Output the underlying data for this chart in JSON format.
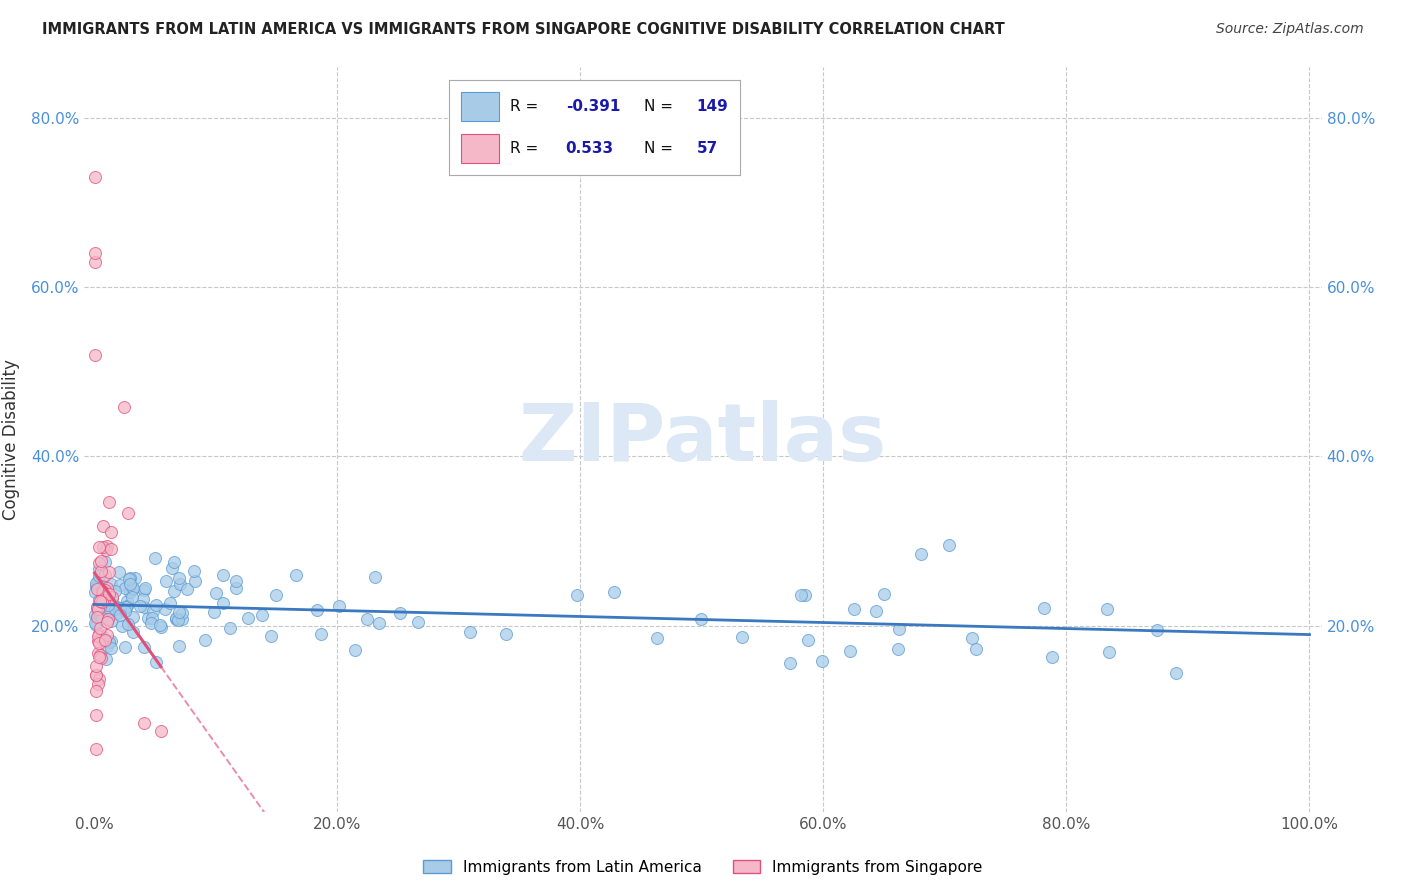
{
  "title": "IMMIGRANTS FROM LATIN AMERICA VS IMMIGRANTS FROM SINGAPORE COGNITIVE DISABILITY CORRELATION CHART",
  "source": "Source: ZipAtlas.com",
  "ylabel": "Cognitive Disability",
  "blue_color": "#a8cce8",
  "blue_edge_color": "#5b9bd5",
  "pink_color": "#f4b8c8",
  "pink_edge_color": "#e05080",
  "blue_line_color": "#3a78c0",
  "pink_line_color": "#e0507a",
  "watermark_color": "#dce8f5",
  "background_color": "#ffffff",
  "grid_color": "#c8c8c8",
  "title_color": "#222222",
  "source_color": "#444444",
  "ylabel_color": "#333333",
  "tick_color": "#4a90d9",
  "legend_text_color": "#1a1aaa",
  "r1": "-0.391",
  "n1": "149",
  "r2": "0.533",
  "n2": "57"
}
